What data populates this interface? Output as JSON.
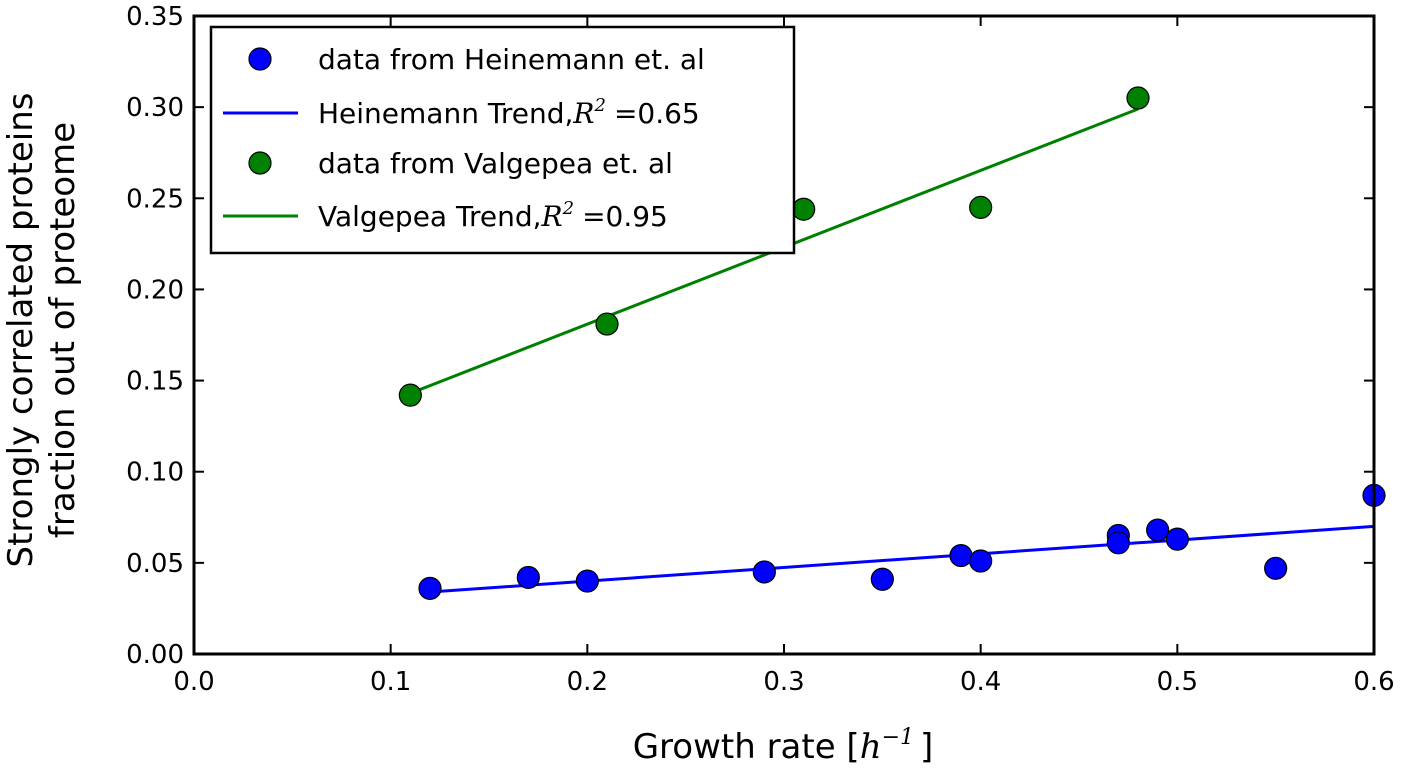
{
  "chart_data": {
    "type": "scatter",
    "xlabel": "Growth rate [",
    "xlabel_math": "h",
    "xlabel_math_sup": "−1",
    "xlabel_end": "]",
    "ylabel_line1": "Strongly correlated proteins",
    "ylabel_line2": "fraction out of proteome",
    "xlim": [
      0.0,
      0.6
    ],
    "ylim": [
      0.0,
      0.35
    ],
    "xticks": [
      0.0,
      0.1,
      0.2,
      0.3,
      0.4,
      0.5,
      0.6
    ],
    "xtick_labels": [
      "0.0",
      "0.1",
      "0.2",
      "0.3",
      "0.4",
      "0.5",
      "0.6"
    ],
    "yticks": [
      0.0,
      0.05,
      0.1,
      0.15,
      0.2,
      0.25,
      0.3,
      0.35
    ],
    "ytick_labels": [
      "0.00",
      "0.05",
      "0.10",
      "0.15",
      "0.20",
      "0.25",
      "0.30",
      "0.35"
    ],
    "grid": false,
    "legend_position": "top-left",
    "series": [
      {
        "name": "data from Heinemann et. al",
        "kind": "scatter",
        "color": "#0000ff",
        "x": [
          0.12,
          0.17,
          0.2,
          0.29,
          0.35,
          0.39,
          0.4,
          0.47,
          0.47,
          0.49,
          0.5,
          0.55,
          0.6
        ],
        "y": [
          0.036,
          0.042,
          0.04,
          0.045,
          0.041,
          0.054,
          0.051,
          0.065,
          0.061,
          0.068,
          0.063,
          0.047,
          0.087
        ]
      },
      {
        "name": "Heinemann Trend,",
        "r2_value": "=0.65",
        "kind": "line",
        "color": "#0000ff",
        "x": [
          0.12,
          0.6
        ],
        "y": [
          0.034,
          0.07
        ]
      },
      {
        "name": "data from Valgepea et. al",
        "kind": "scatter",
        "color": "#008000",
        "x": [
          0.11,
          0.21,
          0.31,
          0.4,
          0.48
        ],
        "y": [
          0.142,
          0.181,
          0.244,
          0.245,
          0.305
        ]
      },
      {
        "name": "Valgepea Trend,",
        "r2_value": "=0.95",
        "kind": "line",
        "color": "#008000",
        "x": [
          0.11,
          0.48
        ],
        "y": [
          0.143,
          0.299
        ]
      }
    ],
    "r2_symbol": "R",
    "r2_sup": "2"
  }
}
